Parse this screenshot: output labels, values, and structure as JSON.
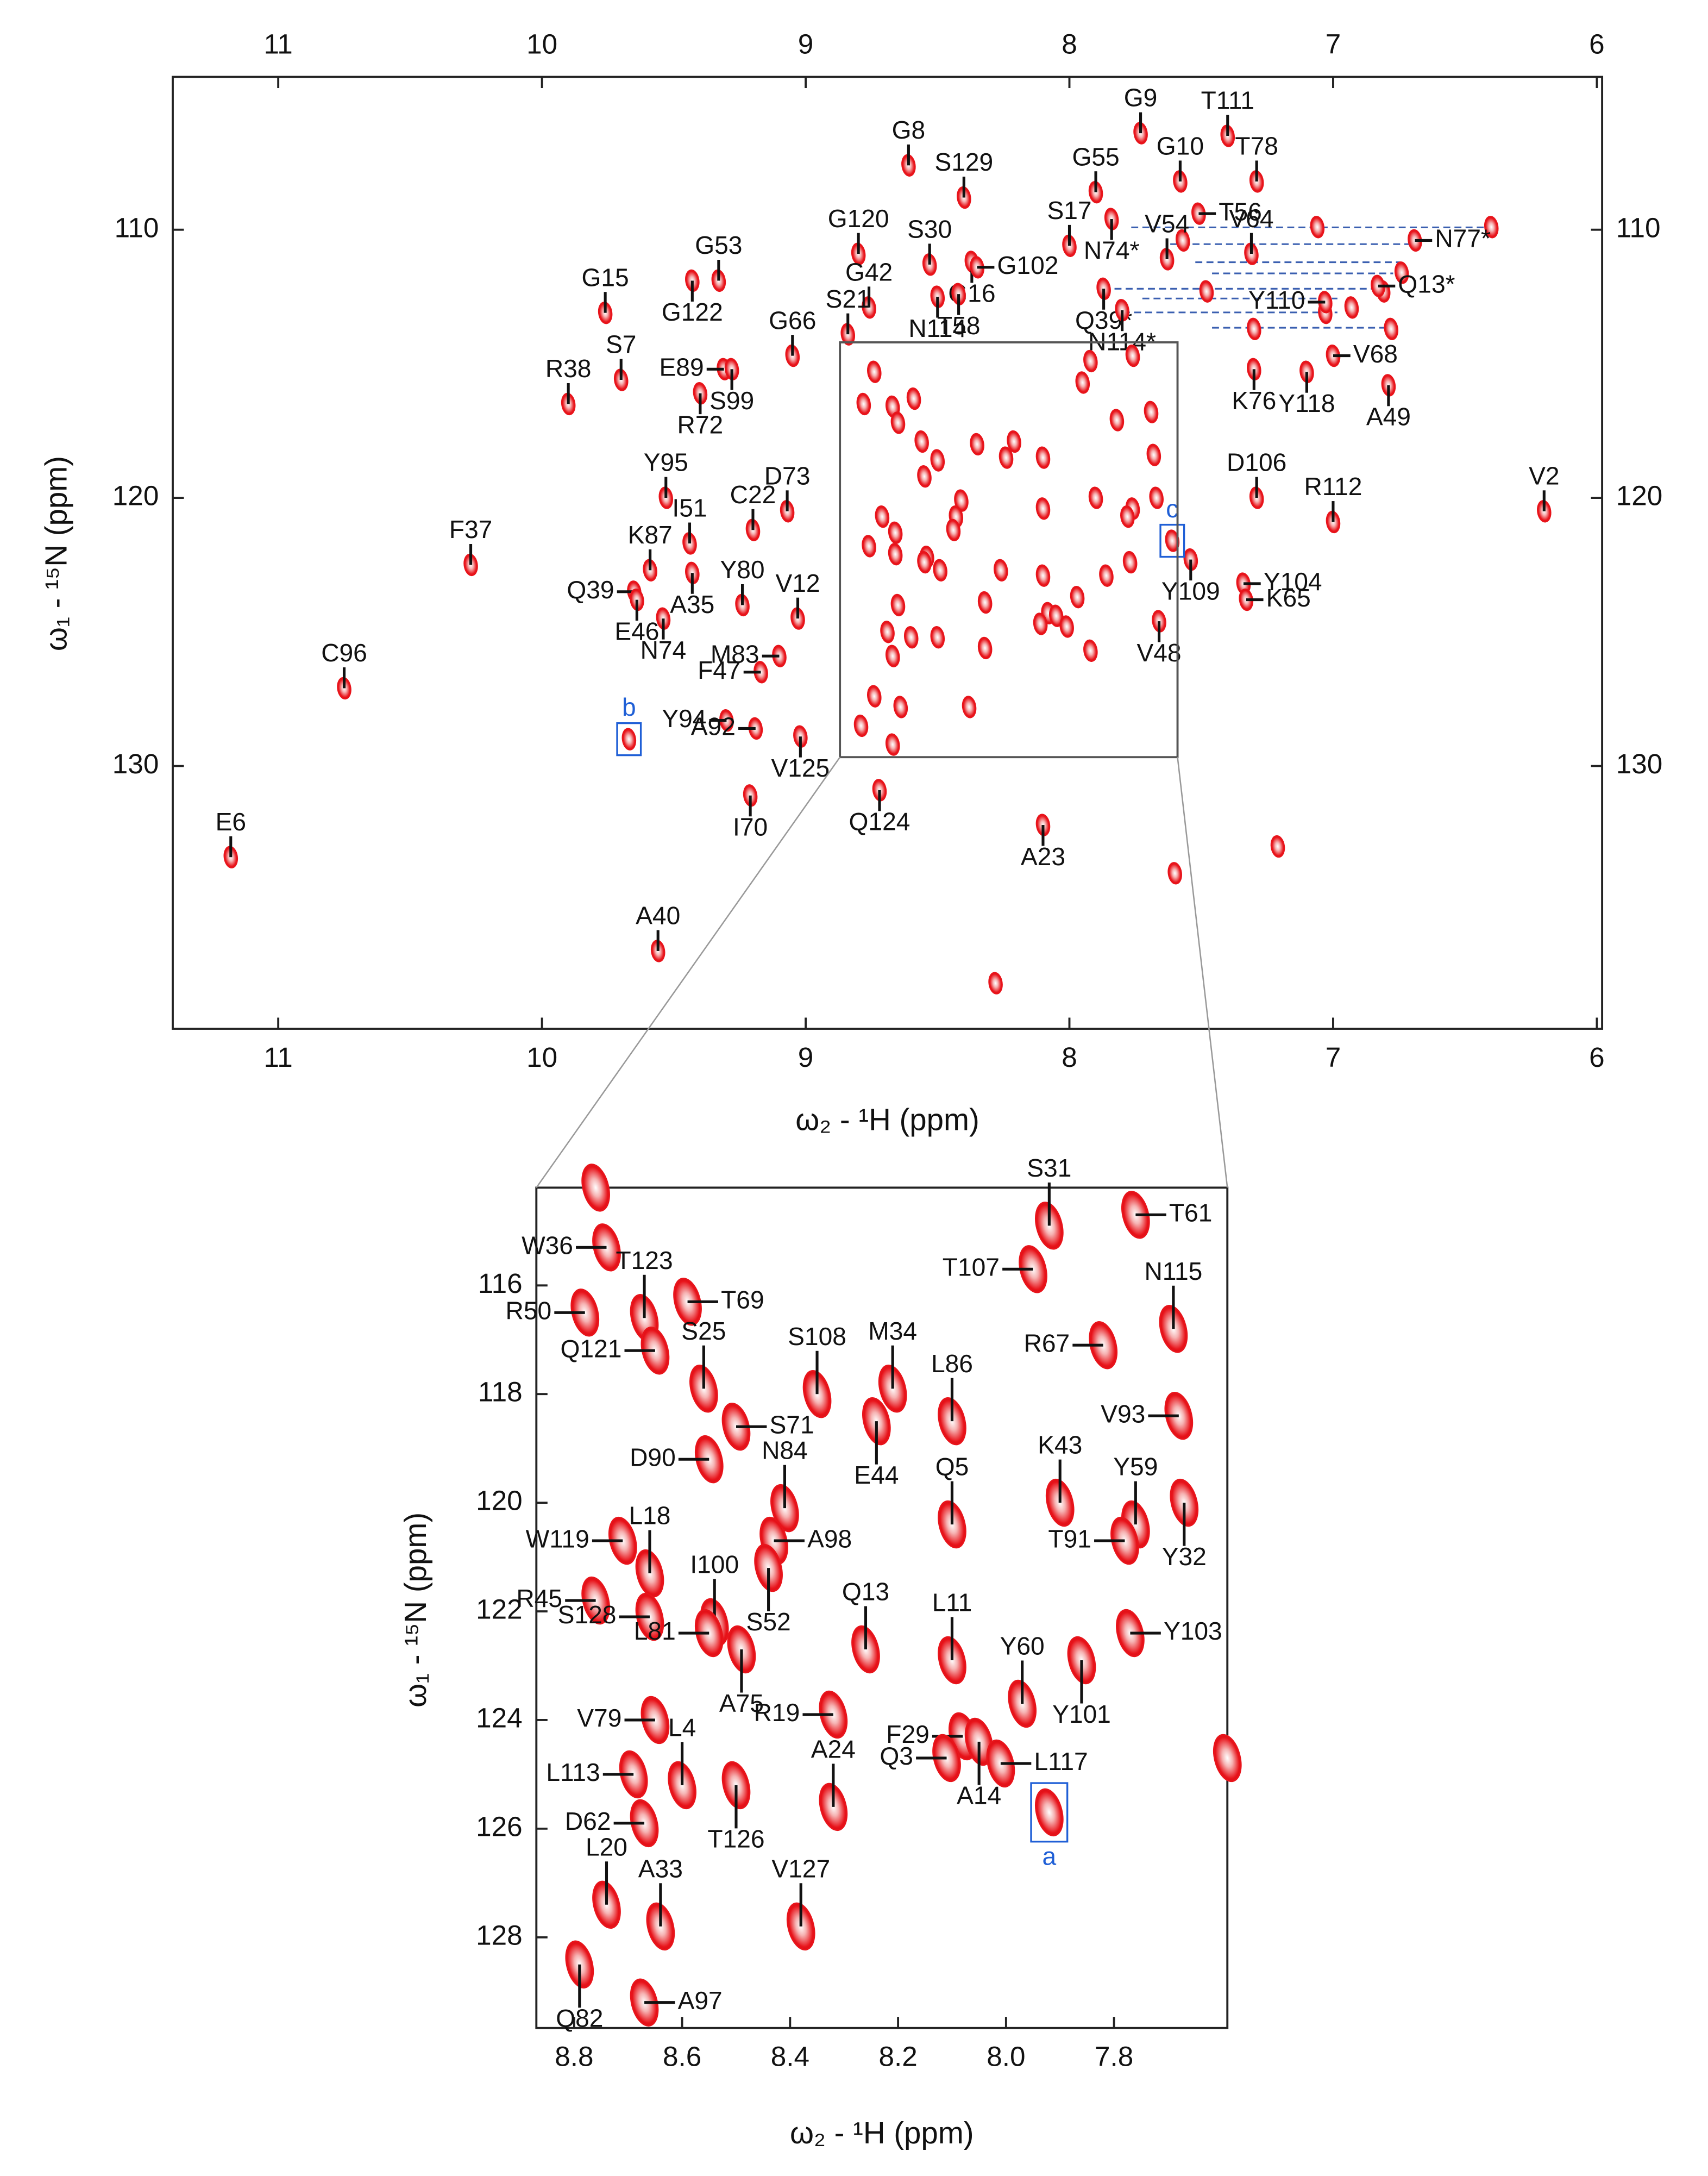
{
  "chart_data": [
    {
      "type": "scatter",
      "xlabel": "ω₂ - ¹H  (ppm)",
      "ylabel": "ω₁ - ¹⁵N (ppm)",
      "xlim": [
        11.4,
        5.98
      ],
      "ylim": [
        104.3,
        139.8
      ],
      "xticks": [
        11,
        10,
        9,
        8,
        7,
        6
      ],
      "yticks": [
        110,
        120,
        130
      ],
      "peak_color": "#e8141b",
      "peaks": {
        "labels": [
          "G9",
          "T111",
          "G8",
          "S129",
          "G55",
          "G10",
          "T56",
          "T78",
          "S17",
          "N74*",
          "V54",
          "V64",
          "N77*",
          "G120",
          "S30",
          "G16",
          "G102",
          "G53",
          "G15",
          "G122",
          "G42",
          "T58",
          "N114",
          "S21",
          "Q39*",
          "N114*",
          "Q13*",
          "Y110",
          "G66",
          "E89",
          "S99",
          "S7",
          "R38",
          "R72",
          "V68",
          "K76",
          "Y118",
          "A49",
          "Y95",
          "C22",
          "D73",
          "I51",
          "F37",
          "K87",
          "Q39",
          "A35",
          "Y80",
          "V12",
          "E46",
          "N74",
          "M83",
          "F47",
          "Y94",
          "A92",
          "V125",
          "I70",
          "Q124",
          "A23",
          "C96",
          "E6",
          "A40",
          "V2",
          "D106",
          "R112",
          "Y104",
          "K65",
          "Y109",
          "V48"
        ],
        "x": [
          7.73,
          7.4,
          8.61,
          8.4,
          7.9,
          7.58,
          7.51,
          7.29,
          8.0,
          7.84,
          7.63,
          7.31,
          6.69,
          8.8,
          8.53,
          8.37,
          8.35,
          9.33,
          9.76,
          9.43,
          8.76,
          8.42,
          8.5,
          8.84,
          7.87,
          7.8,
          6.83,
          7.03,
          9.05,
          9.31,
          9.28,
          9.7,
          9.9,
          9.4,
          7.0,
          7.3,
          7.1,
          6.79,
          9.53,
          9.2,
          9.07,
          9.44,
          10.27,
          9.59,
          9.65,
          9.43,
          9.24,
          9.03,
          9.64,
          9.54,
          9.1,
          9.17,
          9.3,
          9.19,
          9.02,
          9.21,
          8.72,
          8.1,
          10.75,
          11.18,
          9.56,
          6.2,
          7.29,
          7.0,
          7.34,
          7.33,
          7.54,
          7.66
        ],
        "y": [
          106.4,
          106.5,
          107.6,
          108.8,
          108.6,
          108.2,
          109.4,
          108.2,
          110.6,
          109.6,
          111.1,
          110.9,
          110.4,
          110.9,
          111.3,
          111.2,
          111.4,
          111.9,
          113.1,
          111.9,
          112.9,
          112.4,
          112.5,
          113.9,
          112.2,
          113.0,
          112.1,
          112.7,
          114.7,
          115.2,
          115.2,
          115.6,
          116.5,
          116.1,
          114.7,
          115.2,
          115.3,
          115.8,
          120.0,
          121.2,
          120.5,
          121.7,
          122.5,
          122.7,
          123.5,
          122.8,
          124.0,
          124.5,
          123.8,
          124.5,
          125.9,
          126.5,
          128.3,
          128.6,
          128.9,
          131.1,
          130.9,
          132.2,
          127.1,
          133.4,
          136.9,
          120.5,
          120.0,
          120.9,
          123.2,
          123.8,
          122.3,
          124.6
        ]
      },
      "boxed_peaks": {
        "labels": [
          "b",
          "c"
        ],
        "x": [
          9.67,
          7.61
        ],
        "y": [
          129.0,
          121.6
        ],
        "color": "#1f5fd6"
      },
      "unlabeled_peaks": {
        "x": [
          7.21,
          7.6,
          8.28,
          6.4,
          7.06,
          6.74,
          6.81,
          6.93,
          7.03,
          7.3,
          6.78,
          7.48,
          7.57
        ],
        "y": [
          133.0,
          134.0,
          138.1,
          109.9,
          109.9,
          111.6,
          112.3,
          112.9,
          113.1,
          113.7,
          113.7,
          112.3,
          110.4
        ]
      }
    },
    {
      "type": "scatter",
      "xlabel": "ω₂ - ¹H  (ppm)",
      "ylabel": "ω₁ - ¹⁵N (ppm)",
      "xlim": [
        8.87,
        7.59
      ],
      "ylim": [
        114.2,
        129.67
      ],
      "xticks": [
        8.8,
        8.6,
        8.4,
        8.2,
        {
          "value": 8,
          "label": "8.0"
        },
        7.8
      ],
      "yticks": [
        116,
        118,
        120,
        122,
        124,
        126,
        128
      ],
      "peak_color": "#e8141b",
      "peaks": {
        "labels": [
          "W36",
          "T123",
          "T69",
          "R50",
          "Q121",
          "S25",
          "S108",
          "M34",
          "E44",
          "L86",
          "D90",
          "S71",
          "S31",
          "T107",
          "T61",
          "N115",
          "R67",
          "V93",
          "K43",
          "Y59",
          "T91",
          "Y32",
          "N84",
          "A98",
          "S52",
          "Q5",
          "W119",
          "L18",
          "R45",
          "S128",
          "I100",
          "L81",
          "A75",
          "Q13",
          "L11",
          "Y60",
          "Y101",
          "Y103",
          "R19",
          "V79",
          "F29",
          "A14",
          "Q3",
          "L117",
          "L113",
          "L4",
          "T126",
          "A24",
          "D62",
          "L20",
          "A33",
          "V127",
          "Q82",
          "A97"
        ],
        "x": [
          8.74,
          8.67,
          8.59,
          8.78,
          8.65,
          8.56,
          8.35,
          8.21,
          8.24,
          8.1,
          8.55,
          8.5,
          7.92,
          7.95,
          7.76,
          7.69,
          7.82,
          7.68,
          7.9,
          7.76,
          7.78,
          7.67,
          8.41,
          8.43,
          8.44,
          8.1,
          8.71,
          8.66,
          8.76,
          8.66,
          8.54,
          8.55,
          8.49,
          8.26,
          8.1,
          7.97,
          7.86,
          7.77,
          8.32,
          8.65,
          8.08,
          8.05,
          8.11,
          8.01,
          8.69,
          8.6,
          8.5,
          8.32,
          8.67,
          8.74,
          8.64,
          8.38,
          8.79,
          8.67
        ],
        "y": [
          115.3,
          116.6,
          116.3,
          116.5,
          117.2,
          117.9,
          118.0,
          117.9,
          118.5,
          118.5,
          119.2,
          118.6,
          114.9,
          115.7,
          114.7,
          116.8,
          117.1,
          118.4,
          120.0,
          120.4,
          120.7,
          120.0,
          120.1,
          120.7,
          121.2,
          120.4,
          120.7,
          121.3,
          121.8,
          122.1,
          122.2,
          122.4,
          122.7,
          122.7,
          122.9,
          123.7,
          122.9,
          122.4,
          123.9,
          124.0,
          124.3,
          124.4,
          124.7,
          124.8,
          125.0,
          125.2,
          125.2,
          125.6,
          125.9,
          127.4,
          127.8,
          127.8,
          128.5,
          129.2
        ]
      },
      "boxed_peaks": {
        "labels": [
          "a"
        ],
        "x": [
          7.92
        ],
        "y": [
          125.7
        ],
        "color": "#1f5fd6"
      },
      "unlabeled_peaks": {
        "x": [
          7.59,
          8.76
        ],
        "y": [
          124.7,
          114.2
        ]
      }
    }
  ]
}
